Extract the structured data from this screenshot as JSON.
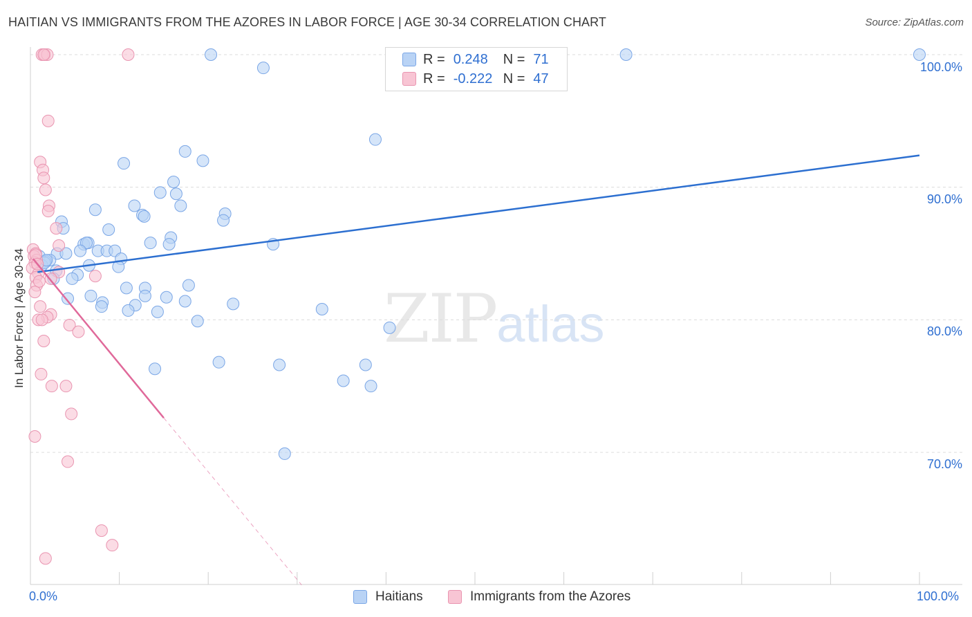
{
  "title": "HAITIAN VS IMMIGRANTS FROM THE AZORES IN LABOR FORCE | AGE 30-34 CORRELATION CHART",
  "source": "Source: ZipAtlas.com",
  "watermark": {
    "zip": "ZIP",
    "atlas": "atlas"
  },
  "legend_top": {
    "row1": {
      "r_label": "R =",
      "r_value": "0.248",
      "n_label": "N =",
      "n_value": "71"
    },
    "row2": {
      "r_label": "R =",
      "r_value": "-0.222",
      "n_label": "N =",
      "n_value": "47"
    }
  },
  "colors": {
    "blue_fill": "#b9d3f5",
    "blue_stroke": "#7aa6e6",
    "blue_line": "#2c6fd0",
    "pink_fill": "#f8c5d4",
    "pink_stroke": "#e994b0",
    "pink_line": "#e0699a"
  },
  "chart_data": {
    "type": "scatter",
    "title": "HAITIAN VS IMMIGRANTS FROM THE AZORES IN LABOR FORCE | AGE 30-34 CORRELATION CHART",
    "xlabel": "",
    "ylabel": "In Labor Force | Age 30-34",
    "xlim": [
      0,
      100
    ],
    "ylim": [
      60,
      101
    ],
    "x_tick_labels": [
      "0.0%",
      "100.0%"
    ],
    "y_ticks": [
      70,
      80,
      90,
      100
    ],
    "y_tick_labels": [
      "70.0%",
      "80.0%",
      "90.0%",
      "100.0%"
    ],
    "grid": true,
    "legend": [
      "Haitians",
      "Immigrants from the Azores"
    ],
    "series": [
      {
        "name": "Haitians",
        "color": "#7aa6e6",
        "trend": {
          "x": [
            0.8,
            100
          ],
          "y": [
            83.6,
            92.4
          ]
        },
        "points": [
          [
            20.3,
            100
          ],
          [
            67,
            100
          ],
          [
            100,
            100
          ],
          [
            26.2,
            99
          ],
          [
            38.8,
            93.6
          ],
          [
            17.4,
            92.7
          ],
          [
            19.4,
            92
          ],
          [
            10.5,
            91.8
          ],
          [
            14.6,
            89.6
          ],
          [
            16.4,
            89.5
          ],
          [
            16.1,
            90.4
          ],
          [
            11.7,
            88.6
          ],
          [
            16.9,
            88.6
          ],
          [
            7.3,
            88.3
          ],
          [
            12.6,
            87.9
          ],
          [
            12.8,
            87.8
          ],
          [
            21.9,
            88
          ],
          [
            21.7,
            87.5
          ],
          [
            3.5,
            87.4
          ],
          [
            3.7,
            86.9
          ],
          [
            8.8,
            86.8
          ],
          [
            15.8,
            86.2
          ],
          [
            6,
            85.7
          ],
          [
            6.5,
            85.8
          ],
          [
            6.3,
            85.8
          ],
          [
            13.5,
            85.8
          ],
          [
            15.6,
            85.7
          ],
          [
            27.3,
            85.7
          ],
          [
            5.6,
            85.2
          ],
          [
            7.6,
            85.2
          ],
          [
            8.6,
            85.2
          ],
          [
            9.5,
            85.2
          ],
          [
            1,
            84.8
          ],
          [
            3,
            85
          ],
          [
            2.2,
            84.5
          ],
          [
            4,
            85
          ],
          [
            10.2,
            84.6
          ],
          [
            9.9,
            84
          ],
          [
            1.7,
            84.4
          ],
          [
            1.3,
            84.1
          ],
          [
            1.6,
            84.3
          ],
          [
            6.6,
            84.1
          ],
          [
            2.9,
            83.7
          ],
          [
            5.3,
            83.4
          ],
          [
            4.7,
            83.1
          ],
          [
            2.6,
            83.1
          ],
          [
            10.8,
            82.4
          ],
          [
            12.9,
            82.4
          ],
          [
            17.8,
            82.6
          ],
          [
            6.8,
            81.8
          ],
          [
            12.9,
            81.8
          ],
          [
            15.3,
            81.7
          ],
          [
            17.4,
            81.4
          ],
          [
            8.1,
            81.3
          ],
          [
            22.8,
            81.2
          ],
          [
            11.8,
            81.1
          ],
          [
            4.2,
            81.6
          ],
          [
            8,
            81
          ],
          [
            11,
            80.7
          ],
          [
            14.3,
            80.6
          ],
          [
            18.8,
            79.9
          ],
          [
            32.8,
            80.8
          ],
          [
            40.4,
            79.4
          ],
          [
            21.2,
            76.8
          ],
          [
            28,
            76.6
          ],
          [
            37.7,
            76.6
          ],
          [
            14,
            76.3
          ],
          [
            35.2,
            75.4
          ],
          [
            38.3,
            75
          ],
          [
            28.6,
            69.9
          ],
          [
            1.8,
            84.5
          ]
        ]
      },
      {
        "name": "Immigrants from the Azores",
        "color": "#e994b0",
        "trend": {
          "x": [
            0.3,
            15
          ],
          "y": [
            84.6,
            72.6
          ]
        },
        "trend_dashed": {
          "x": [
            15,
            30.5
          ],
          "y": [
            72.6,
            60
          ]
        },
        "points": [
          [
            1.3,
            100
          ],
          [
            1.6,
            100
          ],
          [
            1.9,
            100
          ],
          [
            1.5,
            100
          ],
          [
            11,
            100
          ],
          [
            2,
            95
          ],
          [
            1.1,
            91.9
          ],
          [
            1.4,
            91.3
          ],
          [
            1.5,
            90.7
          ],
          [
            1.7,
            89.8
          ],
          [
            2.1,
            88.6
          ],
          [
            2,
            88.2
          ],
          [
            2.9,
            86.9
          ],
          [
            3.2,
            85.6
          ],
          [
            0.3,
            85.3
          ],
          [
            0.6,
            85
          ],
          [
            0.4,
            84.8
          ],
          [
            0.7,
            84.5
          ],
          [
            0.5,
            84.3
          ],
          [
            0.2,
            83.9
          ],
          [
            0.9,
            83.5
          ],
          [
            0.6,
            83.2
          ],
          [
            3.2,
            83.6
          ],
          [
            7.3,
            83.3
          ],
          [
            2.3,
            83.1
          ],
          [
            0.7,
            82.6
          ],
          [
            0.5,
            82.1
          ],
          [
            1.1,
            81
          ],
          [
            2.3,
            80.4
          ],
          [
            1.9,
            80.2
          ],
          [
            0.9,
            80
          ],
          [
            1.3,
            80
          ],
          [
            4.4,
            79.6
          ],
          [
            5.4,
            79.1
          ],
          [
            1.5,
            78.4
          ],
          [
            1.2,
            75.9
          ],
          [
            2.4,
            75
          ],
          [
            4,
            75
          ],
          [
            4.6,
            72.9
          ],
          [
            0.5,
            71.2
          ],
          [
            4.2,
            69.3
          ],
          [
            8,
            64.1
          ],
          [
            9.2,
            63
          ],
          [
            1.7,
            62
          ],
          [
            0.6,
            84.9
          ],
          [
            0.8,
            84.2
          ],
          [
            1.0,
            82.9
          ]
        ]
      }
    ]
  },
  "legend_bottom": {
    "item1": "Haitians",
    "item2": "Immigrants from the Azores"
  }
}
